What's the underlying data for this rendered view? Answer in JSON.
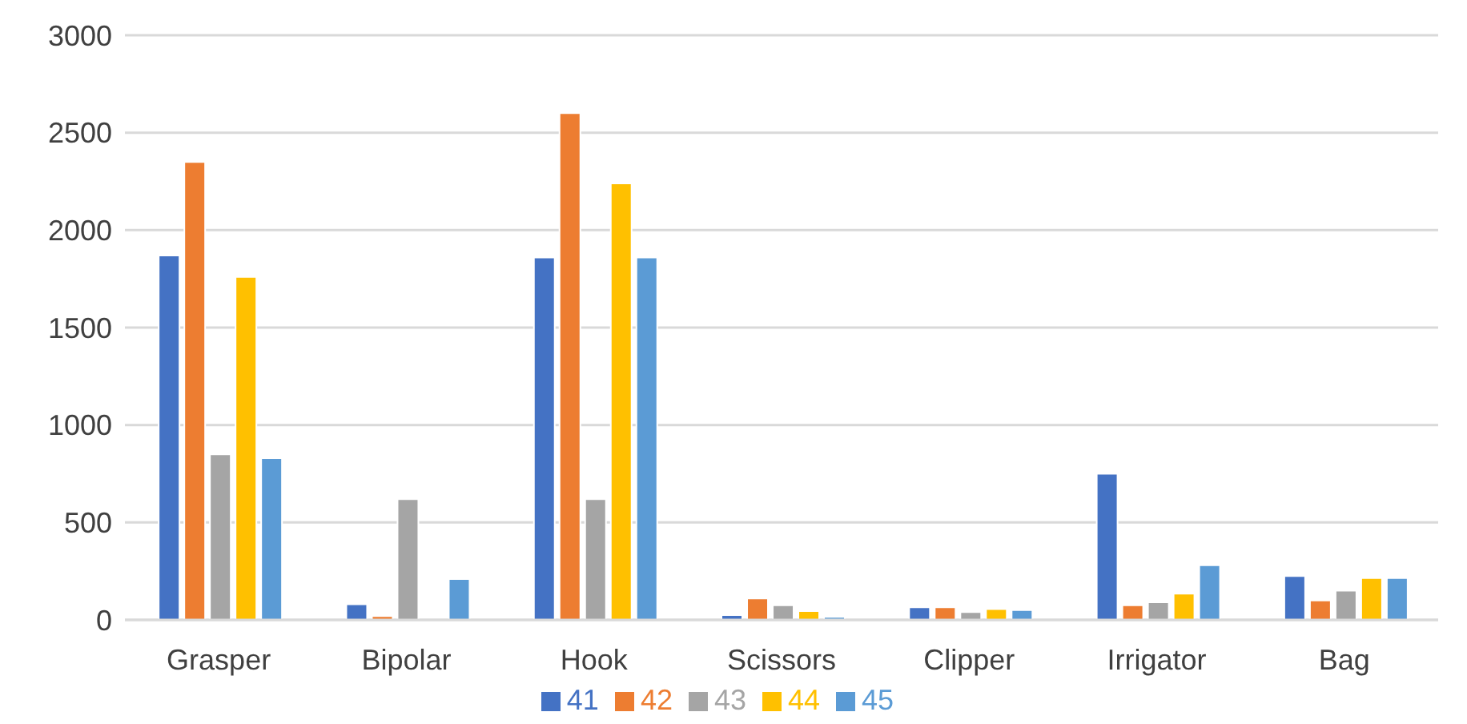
{
  "chart_data": {
    "type": "bar",
    "categories": [
      "Grasper",
      "Bipolar",
      "Hook",
      "Scissors",
      "Clipper",
      "Irrigator",
      "Bag"
    ],
    "series": [
      {
        "name": "41",
        "color": "#4472c4",
        "values": [
          1870,
          80,
          1860,
          25,
          65,
          750,
          225
        ]
      },
      {
        "name": "42",
        "color": "#ed7d31",
        "values": [
          2350,
          20,
          2600,
          110,
          65,
          75,
          100
        ]
      },
      {
        "name": "43",
        "color": "#a5a5a5",
        "values": [
          850,
          620,
          620,
          75,
          40,
          90,
          150
        ]
      },
      {
        "name": "44",
        "color": "#ffc000",
        "values": [
          1760,
          0,
          2240,
          45,
          55,
          135,
          215
        ]
      },
      {
        "name": "45",
        "color": "#5b9bd5",
        "values": [
          830,
          210,
          1860,
          15,
          50,
          280,
          215
        ]
      }
    ],
    "ylim": [
      0,
      3000
    ],
    "yticks": [
      0,
      500,
      1000,
      1500,
      2000,
      2500,
      3000
    ],
    "grid": "y",
    "legend": "bottom"
  }
}
